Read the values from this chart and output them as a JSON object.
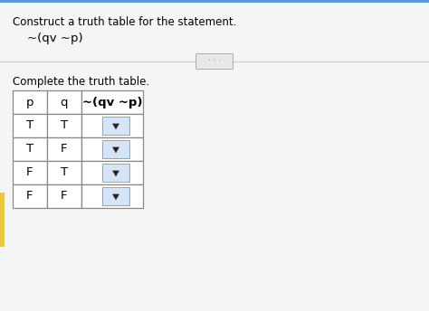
{
  "title_text": "Construct a truth table for the statement.",
  "formula_display": "~(qv ~p)",
  "complete_text": "Complete the truth table.",
  "col_headers": [
    "p",
    "q",
    "~(qv ~p)"
  ],
  "rows": [
    [
      "T",
      "T"
    ],
    [
      "T",
      "F"
    ],
    [
      "F",
      "T"
    ],
    [
      "F",
      "F"
    ]
  ],
  "bg_color": "#f5f5f5",
  "text_color": "#000000",
  "border_color": "#888888",
  "dropdown_bg": "#d6e4f5",
  "dropdown_border": "#7aaad8",
  "accent_color": "#e8c840",
  "title_fontsize": 8.5,
  "formula_fontsize": 9.5,
  "table_fontsize": 9.5,
  "dots_button_color": "#e8e8e8",
  "dots_border_color": "#aaaaaa",
  "divider_color": "#cccccc",
  "top_bar_color": "#5b9bd5"
}
